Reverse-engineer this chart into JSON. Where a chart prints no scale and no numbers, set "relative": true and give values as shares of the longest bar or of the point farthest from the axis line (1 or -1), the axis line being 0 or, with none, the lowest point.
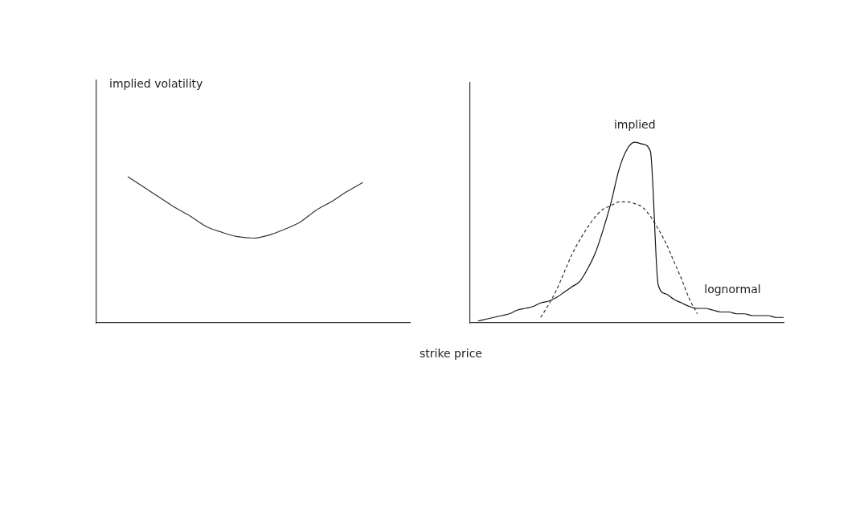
{
  "chart_data": [
    {
      "type": "line",
      "ylabel": "implied volatility",
      "xlabel": "strike price",
      "relative": true,
      "tick_labels": false,
      "marker": "none",
      "categories": [
        null,
        null,
        null,
        null,
        null,
        null,
        null,
        null,
        null,
        null,
        null,
        null,
        null,
        null,
        null,
        null,
        null,
        null,
        null,
        null,
        null
      ],
      "series": [
        {
          "color": "#333333",
          "values": [
            null,
            null,
            1,
            0.93,
            0.86,
            0.79,
            0.73,
            0.66,
            0.62,
            0.59,
            0.58,
            0.6,
            0.64,
            0.69,
            0.77,
            0.83,
            0.9,
            0.96,
            null,
            null,
            null
          ]
        }
      ]
    },
    {
      "type": "line",
      "relative": true,
      "tick_labels": false,
      "marker": "none",
      "categories": [
        null,
        null,
        null,
        null,
        null,
        null,
        null,
        null,
        null,
        null,
        null,
        null,
        null,
        null,
        null,
        null,
        null,
        null,
        null,
        null,
        null,
        null,
        null,
        null,
        null,
        null,
        null,
        null,
        null,
        null,
        null,
        null,
        null,
        null,
        null,
        null,
        null,
        null,
        null,
        null,
        null
      ],
      "series": [
        {
          "name": "implied",
          "color": "#111111",
          "line_style": "solid",
          "values": [
            null,
            0.01,
            0.02,
            0.03,
            0.04,
            0.05,
            0.07,
            0.08,
            0.09,
            0.11,
            0.12,
            0.14,
            0.17,
            0.2,
            0.23,
            0.3,
            0.39,
            0.52,
            0.67,
            0.85,
            0.96,
            1,
            0.99,
            0.95,
            0.21,
            0.16,
            0.13,
            0.11,
            0.09,
            0.08,
            0.08,
            0.07,
            0.06,
            0.06,
            0.05,
            0.05,
            0.04,
            0.04,
            0.04,
            0.03,
            0.03
          ]
        },
        {
          "name": "lognormal",
          "color": "#333333",
          "line_style": "dashed",
          "values": [
            null,
            null,
            null,
            null,
            null,
            null,
            null,
            null,
            null,
            0.03,
            0.1,
            0.18,
            0.28,
            0.38,
            0.46,
            0.53,
            0.59,
            0.63,
            0.65,
            0.67,
            0.67,
            0.66,
            0.64,
            0.59,
            0.52,
            0.44,
            0.34,
            0.24,
            0.13,
            0.05,
            null,
            null,
            null,
            null,
            null,
            null,
            null,
            null,
            null,
            null,
            null
          ]
        }
      ]
    }
  ]
}
